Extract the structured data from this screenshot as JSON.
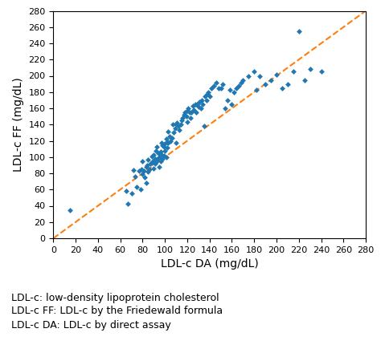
{
  "chart_data": {
    "type": "scatter",
    "xlabel": "LDL-c DA (mg/dL)",
    "ylabel": "LDL-c FF (mg/dL)",
    "annotations": [
      "LDL-c: low-density lipoprotein cholesterol",
      "LDL-c FF: LDL-c by the Friedewald formula",
      "LDL-c DA: LDL-c by direct assay"
    ],
    "series": [
      {
        "type": "scatter",
        "marker": "diamond",
        "x": [
          15,
          65,
          67,
          70,
          72,
          73,
          75,
          77,
          78,
          79,
          80,
          80,
          81,
          82,
          83,
          83,
          84,
          85,
          85,
          86,
          87,
          88,
          88,
          89,
          90,
          90,
          91,
          91,
          92,
          92,
          93,
          93,
          94,
          94,
          95,
          95,
          96,
          96,
          97,
          97,
          98,
          98,
          99,
          99,
          100,
          100,
          101,
          101,
          102,
          102,
          103,
          103,
          104,
          105,
          106,
          107,
          108,
          109,
          110,
          110,
          111,
          112,
          113,
          114,
          115,
          116,
          117,
          118,
          119,
          120,
          120,
          121,
          122,
          123,
          124,
          125,
          126,
          127,
          128,
          129,
          130,
          131,
          132,
          133,
          134,
          135,
          136,
          137,
          138,
          139,
          140,
          142,
          144,
          146,
          148,
          150,
          152,
          154,
          156,
          158,
          160,
          162,
          164,
          166,
          168,
          170,
          175,
          180,
          182,
          185,
          190,
          195,
          200,
          205,
          210,
          215,
          220,
          225,
          230,
          240
        ],
        "values": [
          35,
          58,
          42,
          55,
          84,
          76,
          63,
          83,
          60,
          85,
          79,
          95,
          83,
          75,
          88,
          68,
          90,
          82,
          97,
          85,
          92,
          93,
          101,
          95,
          86,
          103,
          98,
          92,
          94,
          108,
          96,
          113,
          99,
          105,
          88,
          100,
          107,
          95,
          103,
          118,
          115,
          98,
          113,
          102,
          117,
          108,
          122,
          100,
          119,
          112,
          118,
          131,
          125,
          120,
          123,
          140,
          130,
          135,
          140,
          118,
          142,
          138,
          133,
          140,
          145,
          148,
          152,
          155,
          150,
          143,
          157,
          160,
          155,
          148,
          155,
          163,
          158,
          165,
          155,
          165,
          162,
          168,
          160,
          170,
          165,
          138,
          175,
          170,
          178,
          180,
          175,
          185,
          188,
          192,
          185,
          185,
          190,
          160,
          170,
          183,
          165,
          180,
          185,
          188,
          192,
          195,
          200,
          205,
          183,
          200,
          190,
          195,
          201,
          185,
          190,
          205,
          255,
          195,
          208,
          205
        ]
      },
      {
        "type": "line",
        "line_style": "dashed",
        "x": [
          0,
          280
        ],
        "values": [
          0,
          280
        ]
      }
    ],
    "xlim": [
      0,
      280
    ],
    "ylim": [
      0,
      280
    ],
    "xticks": [
      0,
      20,
      40,
      60,
      80,
      100,
      120,
      140,
      160,
      180,
      200,
      220,
      240,
      260,
      280
    ],
    "yticks": [
      0,
      20,
      40,
      60,
      80,
      100,
      120,
      140,
      160,
      180,
      200,
      220,
      240,
      260,
      280
    ]
  }
}
